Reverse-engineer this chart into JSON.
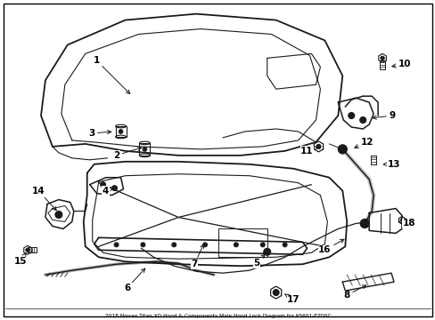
{
  "background_color": "#ffffff",
  "border_color": "#000000",
  "line_color": "#1a1a1a",
  "text_color": "#000000",
  "fig_width": 4.89,
  "fig_height": 3.6,
  "dpi": 100,
  "note_text": "2018 Nissan Titan XD Hood & Components Male Hood Lock Diagram for 65601-EZ00C"
}
